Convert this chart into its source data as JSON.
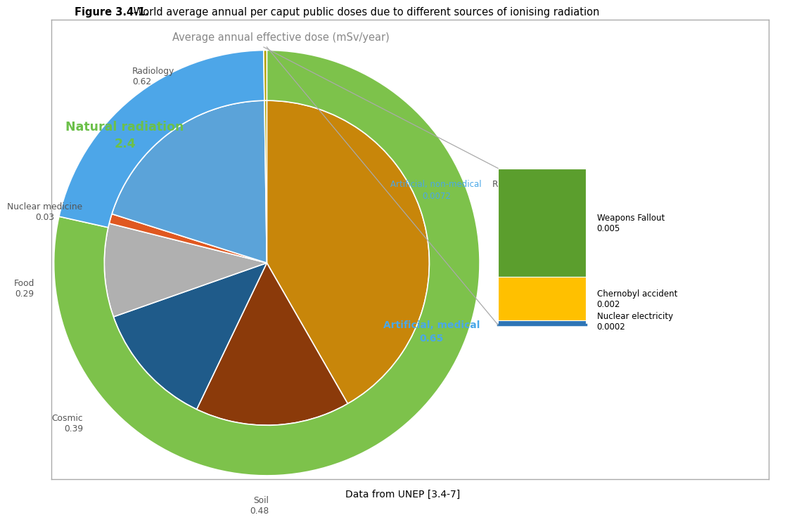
{
  "title_bold": "Figure 3.4-1.",
  "title_rest": " World average annual per caput public doses due to different sources of ionising radiation",
  "chart_title": "Average annual effective dose (mSv/year)",
  "footer": "Data from UNEP [3.4-7]",
  "inner_slices": [
    {
      "label": "Radon",
      "value": 1.3,
      "color": "#C8860A"
    },
    {
      "label": "Soil",
      "value": 0.48,
      "color": "#8B3A0A"
    },
    {
      "label": "Cosmic",
      "value": 0.39,
      "color": "#1F5B8A"
    },
    {
      "label": "Food",
      "value": 0.29,
      "color": "#B0B0B0"
    },
    {
      "label": "Nuclear medicine",
      "value": 0.03,
      "color": "#E05820"
    },
    {
      "label": "Radiology",
      "value": 0.62,
      "color": "#5BA3D9"
    },
    {
      "label": "Artificial non-med",
      "value": 0.0072,
      "color": "#B0A000"
    }
  ],
  "outer_slices": [
    {
      "label": "Natural radiation\n2.4",
      "value": 2.4,
      "color": "#7DC24B"
    },
    {
      "label": "Artificial, medical\n0.65",
      "value": 0.65,
      "color": "#4DA6E8"
    },
    {
      "label": "Artificial non-medical\n0.0072",
      "value": 0.0072,
      "color": "#B0A000"
    }
  ],
  "inset_bars": [
    {
      "label": "Weapons Fallout\n0.005",
      "value": 0.005,
      "color": "#5B9E2D"
    },
    {
      "label": "Chernobyl accident\n0.002",
      "value": 0.002,
      "color": "#FFC000"
    },
    {
      "label": "Nuclear electricity\n0.0002",
      "value": 0.0002,
      "color": "#2E75B6"
    }
  ],
  "natural_label_color": "#6CC04A",
  "artificial_medical_label_color": "#4AA8E8",
  "label_color": "#555555",
  "background_color": "#FFFFFF"
}
